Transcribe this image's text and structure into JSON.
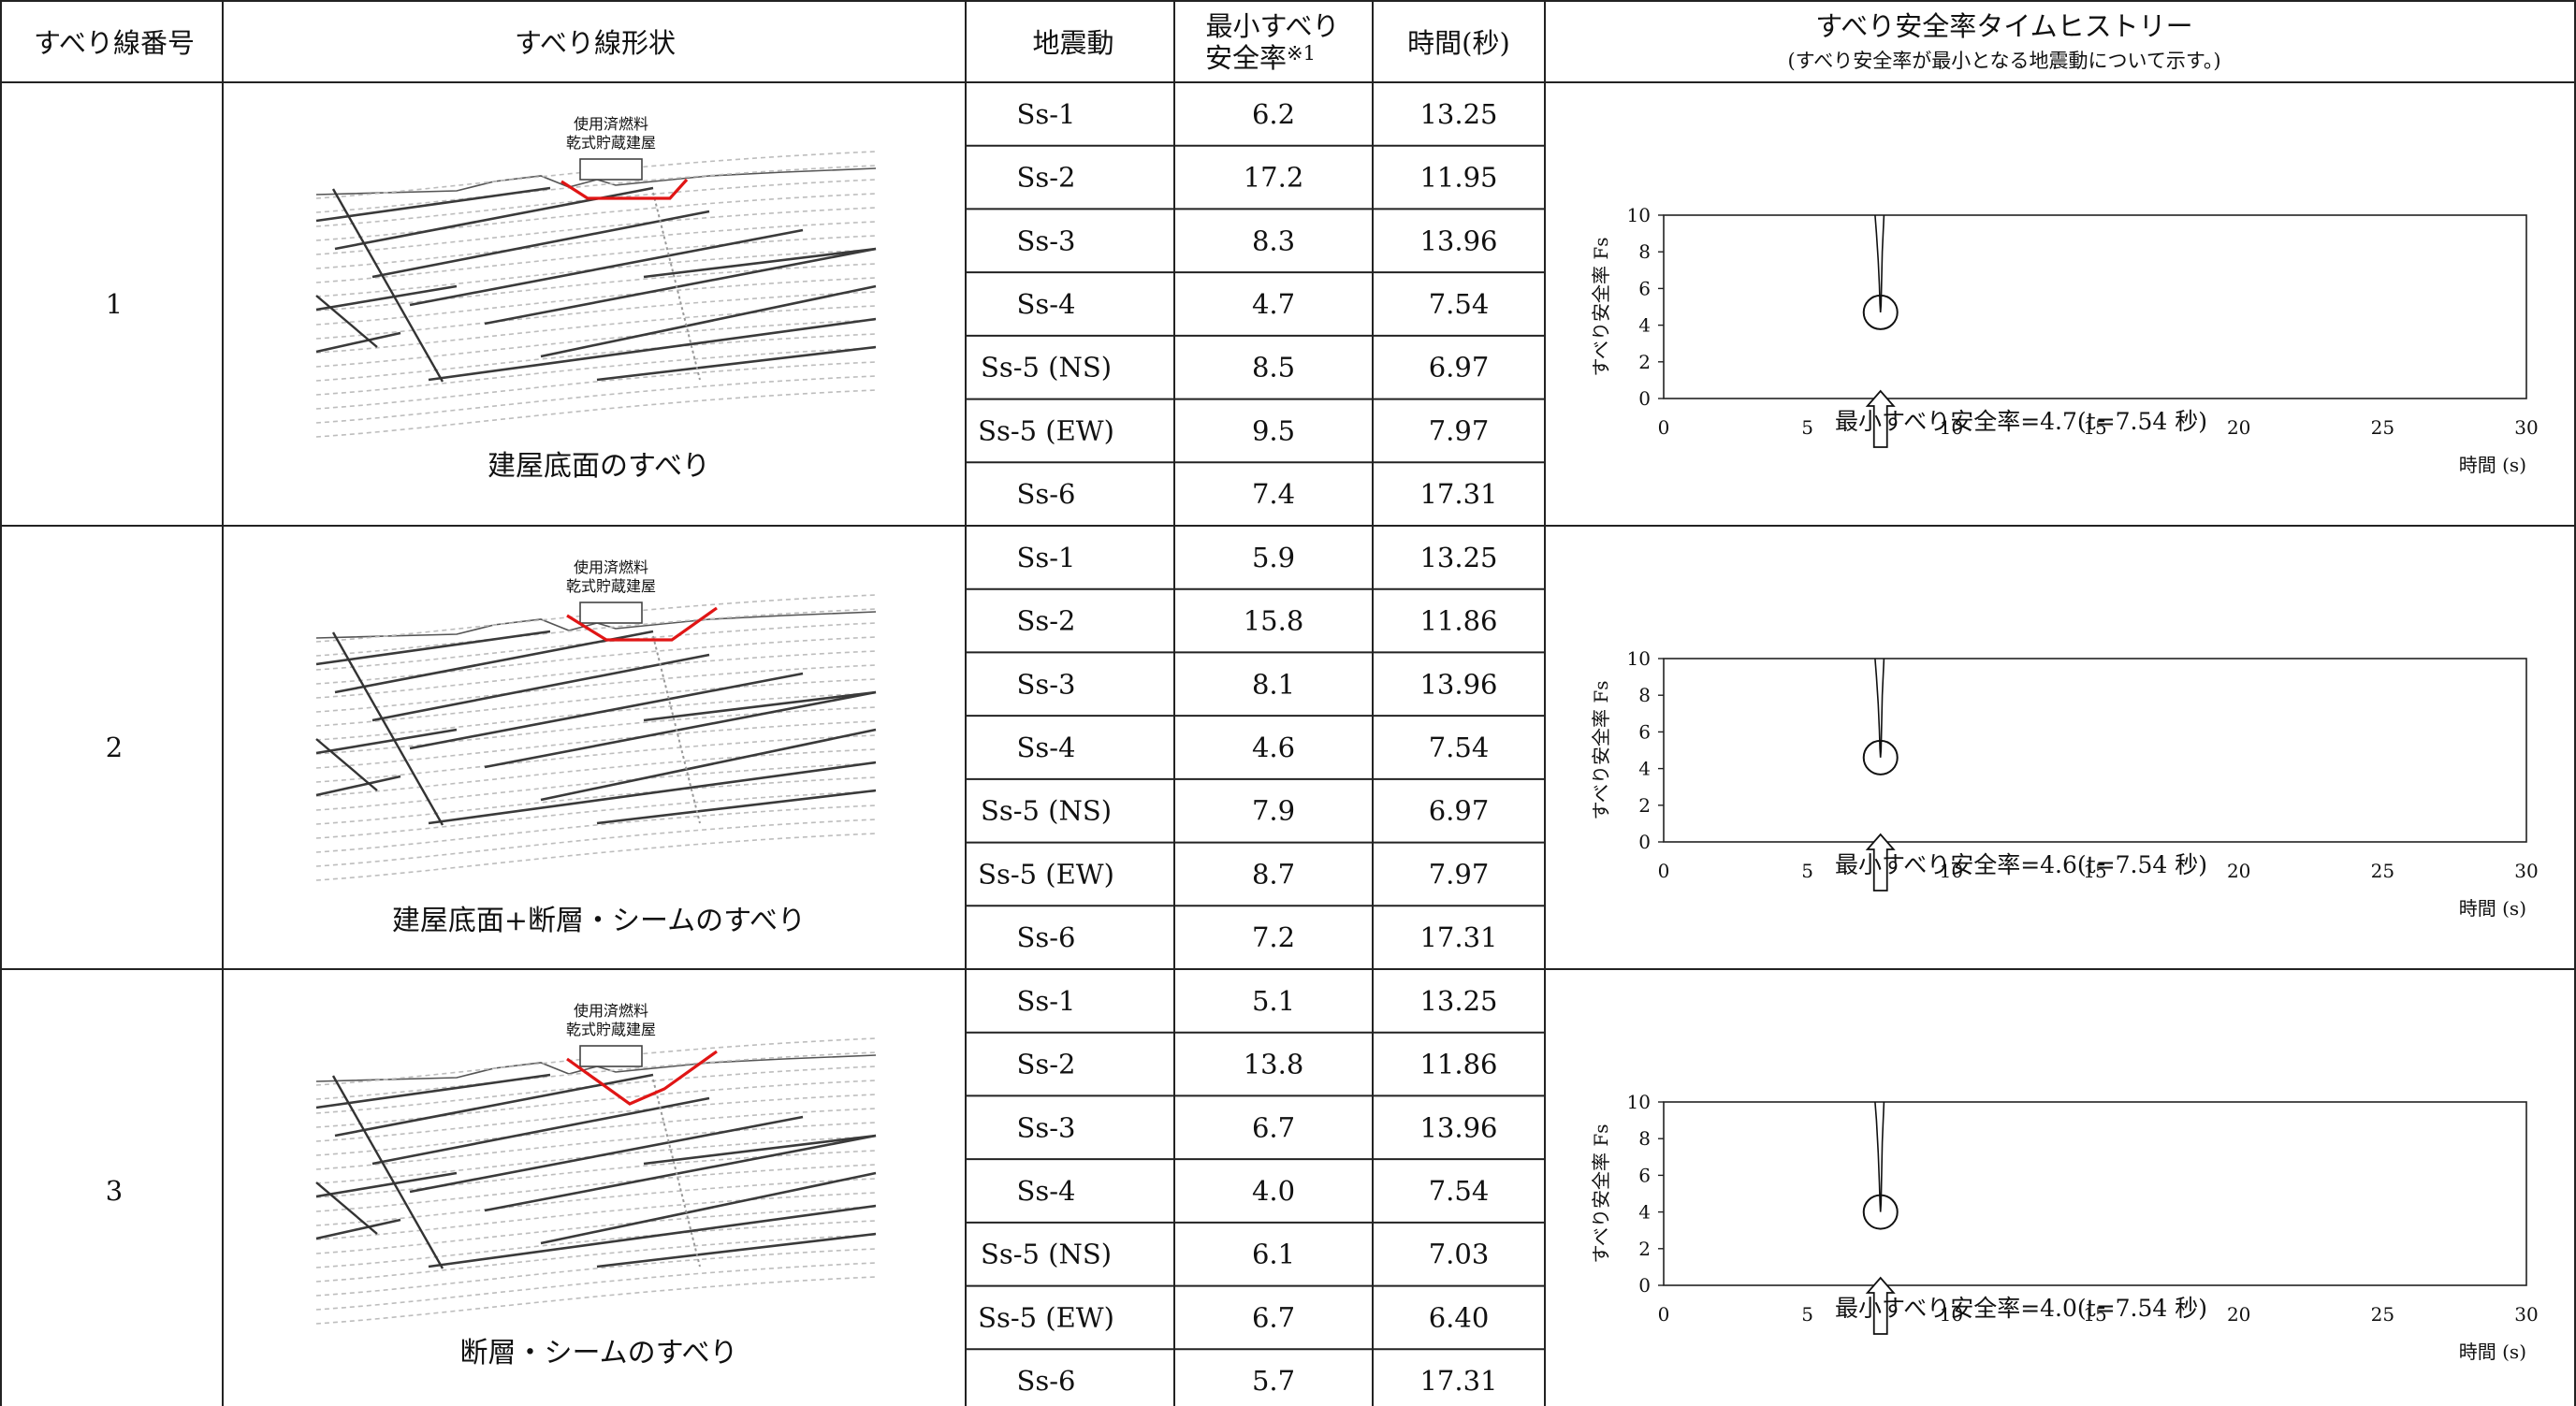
{
  "header": {
    "col_no": "すべり線番号",
    "col_shape": "すべり線形状",
    "col_eq": "地震動",
    "col_sf_line1": "最小すべり",
    "col_sf_line2": "安全率",
    "col_sf_note": "※1",
    "col_time": "時間(秒)",
    "col_hist": "すべり安全率タイムヒストリー",
    "col_hist_note": "(すべり安全率が最小となる地震動について示す。)"
  },
  "rows": [
    {
      "no": "1",
      "building_label_1": "使用済燃料",
      "building_label_2": "乾式貯蔵建屋",
      "caption": "建屋底面のすべり",
      "chart_caption": "最小すべり安全率=4.7(t=7.54 秒)",
      "entries": [
        {
          "eq": "Ss-1",
          "sf": "6.2",
          "t": "13.25"
        },
        {
          "eq": "Ss-2",
          "sf": "17.2",
          "t": "11.95"
        },
        {
          "eq": "Ss-3",
          "sf": "8.3",
          "t": "13.96"
        },
        {
          "eq": "Ss-4",
          "sf": "4.7",
          "t": "7.54"
        },
        {
          "eq": "Ss-5 (NS)",
          "sf": "8.5",
          "t": "6.97"
        },
        {
          "eq": "Ss-5 (EW)",
          "sf": "9.5",
          "t": "7.97"
        },
        {
          "eq": "Ss-6",
          "sf": "7.4",
          "t": "17.31"
        }
      ]
    },
    {
      "no": "2",
      "building_label_1": "使用済燃料",
      "building_label_2": "乾式貯蔵建屋",
      "caption": "建屋底面+断層・シームのすべり",
      "chart_caption": "最小すべり安全率=4.6(t=7.54 秒)",
      "entries": [
        {
          "eq": "Ss-1",
          "sf": "5.9",
          "t": "13.25"
        },
        {
          "eq": "Ss-2",
          "sf": "15.8",
          "t": "11.86"
        },
        {
          "eq": "Ss-3",
          "sf": "8.1",
          "t": "13.96"
        },
        {
          "eq": "Ss-4",
          "sf": "4.6",
          "t": "7.54"
        },
        {
          "eq": "Ss-5 (NS)",
          "sf": "7.9",
          "t": "6.97"
        },
        {
          "eq": "Ss-5 (EW)",
          "sf": "8.7",
          "t": "7.97"
        },
        {
          "eq": "Ss-6",
          "sf": "7.2",
          "t": "17.31"
        }
      ]
    },
    {
      "no": "3",
      "building_label_1": "使用済燃料",
      "building_label_2": "乾式貯蔵建屋",
      "caption": "断層・シームのすべり",
      "chart_caption": "最小すべり安全率=4.0(t=7.54 秒)",
      "entries": [
        {
          "eq": "Ss-1",
          "sf": "5.1",
          "t": "13.25"
        },
        {
          "eq": "Ss-2",
          "sf": "13.8",
          "t": "11.86"
        },
        {
          "eq": "Ss-3",
          "sf": "6.7",
          "t": "13.96"
        },
        {
          "eq": "Ss-4",
          "sf": "4.0",
          "t": "7.54"
        },
        {
          "eq": "Ss-5 (NS)",
          "sf": "6.1",
          "t": "7.03"
        },
        {
          "eq": "Ss-5 (EW)",
          "sf": "6.7",
          "t": "6.40"
        },
        {
          "eq": "Ss-6",
          "sf": "5.7",
          "t": "17.31"
        }
      ]
    }
  ],
  "chart_axes": {
    "ylabel": "すべり安全率 Fs",
    "xlabel": "時間 (s)",
    "xlim": [
      0,
      30
    ],
    "ylim": [
      0,
      10
    ],
    "xticks": [
      "0",
      "5",
      "10",
      "15",
      "20",
      "25",
      "30"
    ],
    "yticks": [
      "0",
      "2",
      "4",
      "6",
      "8",
      "10"
    ]
  },
  "chart_data": [
    {
      "type": "line",
      "xlabel": "時間 (s)",
      "ylabel": "すべり安全率 Fs",
      "xlim": [
        0,
        30
      ],
      "ylim": [
        0,
        10
      ],
      "min_point": {
        "x": 7.54,
        "y": 4.7
      },
      "x": [
        7.35,
        7.4,
        7.46,
        7.5,
        7.52,
        7.54,
        7.56,
        7.6,
        7.66
      ],
      "y": [
        10,
        9.0,
        7.5,
        6.2,
        5.2,
        4.7,
        5.1,
        8.0,
        10
      ]
    },
    {
      "type": "line",
      "xlabel": "時間 (s)",
      "ylabel": "すべり安全率 Fs",
      "xlim": [
        0,
        30
      ],
      "ylim": [
        0,
        10
      ],
      "min_point": {
        "x": 7.54,
        "y": 4.6
      },
      "x": [
        7.35,
        7.4,
        7.46,
        7.5,
        7.52,
        7.54,
        7.56,
        7.6,
        7.66
      ],
      "y": [
        10,
        9.0,
        7.5,
        6.1,
        5.1,
        4.6,
        5.0,
        8.0,
        10
      ]
    },
    {
      "type": "line",
      "xlabel": "時間 (s)",
      "ylabel": "すべり安全率 Fs",
      "xlim": [
        0,
        30
      ],
      "ylim": [
        0,
        10
      ],
      "min_point": {
        "x": 7.54,
        "y": 4.0
      },
      "x": [
        7.35,
        7.4,
        7.46,
        7.5,
        7.52,
        7.54,
        7.56,
        7.6,
        7.66
      ],
      "y": [
        10,
        9.0,
        7.2,
        5.6,
        4.6,
        4.0,
        4.5,
        7.8,
        10
      ]
    }
  ]
}
